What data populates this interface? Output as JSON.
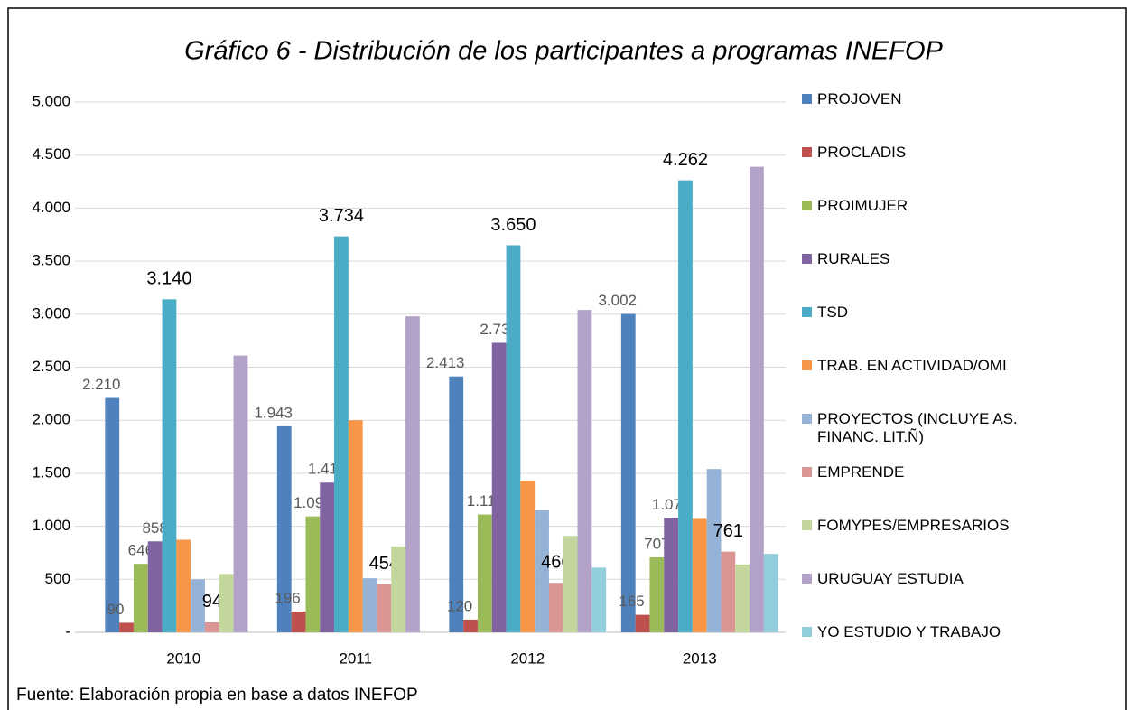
{
  "chart_data": {
    "type": "bar",
    "title": "Gráfico 6 - Distribución de los participantes a programas INEFOP",
    "source": "Fuente: Elaboración propia en base a  datos INEFOP",
    "categories": [
      "2010",
      "2011",
      "2012",
      "2013"
    ],
    "ylim": [
      0,
      5000
    ],
    "yticks": [
      {
        "value": 0,
        "label": "-"
      },
      500,
      {
        "value": 1000,
        "label": "1.000"
      },
      {
        "value": 1500,
        "label": "1.500"
      },
      {
        "value": 2000,
        "label": "2.000"
      },
      {
        "value": 2500,
        "label": "2.500"
      },
      {
        "value": 3000,
        "label": "3.000"
      },
      {
        "value": 3500,
        "label": "3.500"
      },
      {
        "value": 4000,
        "label": "4.000"
      },
      {
        "value": 4500,
        "label": "4.500"
      },
      {
        "value": 5000,
        "label": "5.000"
      }
    ],
    "grid": true,
    "legend": "right",
    "series": [
      {
        "name": "PROJOVEN",
        "color": "#4f81bd",
        "values": [
          2210,
          1943,
          2413,
          3002
        ],
        "value_labels": [
          "2.210",
          "1.943",
          "2.413",
          "3.002"
        ]
      },
      {
        "name": "PROCLADIS",
        "color": "#c0504d",
        "values": [
          90,
          196,
          120,
          165
        ],
        "value_labels": [
          "90",
          "196",
          "120",
          "165"
        ]
      },
      {
        "name": "PROIMUJER",
        "color": "#9bbb59",
        "values": [
          646,
          1093,
          1111,
          707
        ],
        "value_labels": [
          "646",
          "1.093",
          "1.111",
          "707"
        ]
      },
      {
        "name": "RURALES",
        "color": "#8064a2",
        "values": [
          858,
          1412,
          2730,
          1079
        ],
        "value_labels": [
          "858",
          "1.412",
          "2.730",
          "1.079"
        ]
      },
      {
        "name": "TSD",
        "color": "#4bacc6",
        "values": [
          3140,
          3734,
          3650,
          4262
        ],
        "value_labels": [
          "3.140",
          "3.734",
          "3.650",
          "4.262"
        ]
      },
      {
        "name": "TRAB. EN ACTIVIDAD/OMI",
        "color": "#f79646",
        "values": [
          873,
          2000,
          1430,
          1070
        ],
        "value_labels": [
          null,
          null,
          null,
          null
        ]
      },
      {
        "name": "PROYECTOS (INCLUYE AS. FINANC. LIT.Ñ)",
        "color": "#95b3d7",
        "values": [
          500,
          510,
          1150,
          1540
        ],
        "value_labels": [
          null,
          null,
          null,
          null
        ]
      },
      {
        "name": "EMPRENDE",
        "color": "#d99694",
        "values": [
          94,
          454,
          466,
          761
        ],
        "value_labels": [
          "94",
          "454",
          "466",
          "761"
        ]
      },
      {
        "name": "FOMYPES/EMPRESARIOS",
        "color": "#c3d69b",
        "values": [
          550,
          810,
          910,
          640
        ],
        "value_labels": [
          null,
          null,
          null,
          null
        ]
      },
      {
        "name": "URUGUAY ESTUDIA",
        "color": "#b2a2c7",
        "values": [
          2610,
          2980,
          3040,
          4390
        ],
        "value_labels": [
          null,
          null,
          null,
          null
        ]
      },
      {
        "name": "YO ESTUDIO Y TRABAJO",
        "color": "#92cddc",
        "values": [
          null,
          null,
          610,
          740
        ],
        "value_labels": [
          null,
          null,
          null,
          null
        ]
      }
    ]
  }
}
